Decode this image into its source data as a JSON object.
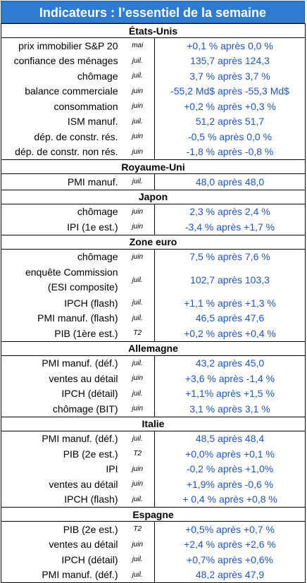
{
  "title": "Indicateurs : l’essentiel de la semaine",
  "sections": [
    {
      "name": "États-Unis",
      "rows": [
        {
          "label": "prix immobilier S&P 20",
          "period": "mai",
          "value": "+0,1 % après 0,0 %"
        },
        {
          "label": "confiance des ménages",
          "period": "juil.",
          "value": "135,7 après 124,3"
        },
        {
          "label": "chômage",
          "period": "juil.",
          "value": "3,7 % après 3,7 %"
        },
        {
          "label": "balance commerciale",
          "period": "juin",
          "value": "-55,2 Md$ après -55,3 Md$"
        },
        {
          "label": "consommation",
          "period": "juin",
          "value": "+0,2 % après +0,3 %"
        },
        {
          "label": "ISM manuf.",
          "period": "juil.",
          "value": "51,2 après 51,7"
        },
        {
          "label": "dép. de constr. rés.",
          "period": "juin",
          "value": "-0,5 % après 0,0 %"
        },
        {
          "label": "dép. de constr. non rés.",
          "period": "juin",
          "value": "-1,8 % après -0,8 %"
        }
      ]
    },
    {
      "name": "Royaume-Uni",
      "rows": [
        {
          "label": "PMI manuf.",
          "period": "juil.",
          "value": "48,0 après 48,0"
        }
      ]
    },
    {
      "name": "Japon",
      "rows": [
        {
          "label": "chômage",
          "period": "juin",
          "value": "2,3 % après 2,4 %"
        },
        {
          "label": "IPI (1e est.)",
          "period": "juin",
          "value": "-3,4 % après +1,7 %"
        }
      ]
    },
    {
      "name": "Zone euro",
      "rows": [
        {
          "label": "chômage",
          "period": "juin",
          "value": "7,5 % après 7,6 %"
        },
        {
          "label": "enquête Commission (ESI composite)",
          "label_line1": "enquête Commission",
          "label_line2": "(ESI composite)",
          "period": "juil.",
          "value": "102,7 après 103,3"
        },
        {
          "label": "IPCH (flash)",
          "period": "juil.",
          "value": "+1,1 % après +1,3 %"
        },
        {
          "label": "PMI manuf. (flash)",
          "period": "juil.",
          "value": "46,5 après 47,6"
        },
        {
          "label": "PIB (1ère est.)",
          "period": "T2",
          "value": "+0,2 % après +0,4 %"
        }
      ]
    },
    {
      "name": "Allemagne",
      "rows": [
        {
          "label": "PMI manuf. (déf.)",
          "period": "juil.",
          "value": "43,2 après 45,0"
        },
        {
          "label": "ventes au détail",
          "period": "juin",
          "value": "+3,6 % après -1,4 %"
        },
        {
          "label": "IPCH (détail)",
          "period": "juil.",
          "value": "+1,1% après +1,5 %"
        },
        {
          "label": "chômage (BIT)",
          "period": "juin",
          "value": "3,1 % après 3,1 %"
        }
      ]
    },
    {
      "name": "Italie",
      "rows": [
        {
          "label": "PMI manuf. (déf.)",
          "period": "juil.",
          "value": "48,5 après 48,4"
        },
        {
          "label": "PIB (2e est.)",
          "period": "T2",
          "value": "+0,0% après +0,1 %"
        },
        {
          "label": "IPI",
          "period": "juin",
          "value": "-0,2 % après +1,0%"
        },
        {
          "label": "ventes au détail",
          "period": "juin",
          "value": "+1,9% après -0,6 %"
        },
        {
          "label": "IPCH (flash)",
          "period": "juil.",
          "value": "+ 0,4 % après +0,8 %"
        }
      ]
    },
    {
      "name": "Espagne",
      "rows": [
        {
          "label": "PIB (2e est.)",
          "period": "T2",
          "value": "+0,5% après +0,7 %"
        },
        {
          "label": "ventes au détail",
          "period": "juin",
          "value": "+2,4 % après +2,6 %"
        },
        {
          "label": "IPCH (détail)",
          "period": "juil.",
          "value": "+0,7% après +0,6%"
        },
        {
          "label": "PMI manuf. (déf.)",
          "period": "juil.",
          "value": "48,2 après 47,9"
        }
      ]
    }
  ]
}
